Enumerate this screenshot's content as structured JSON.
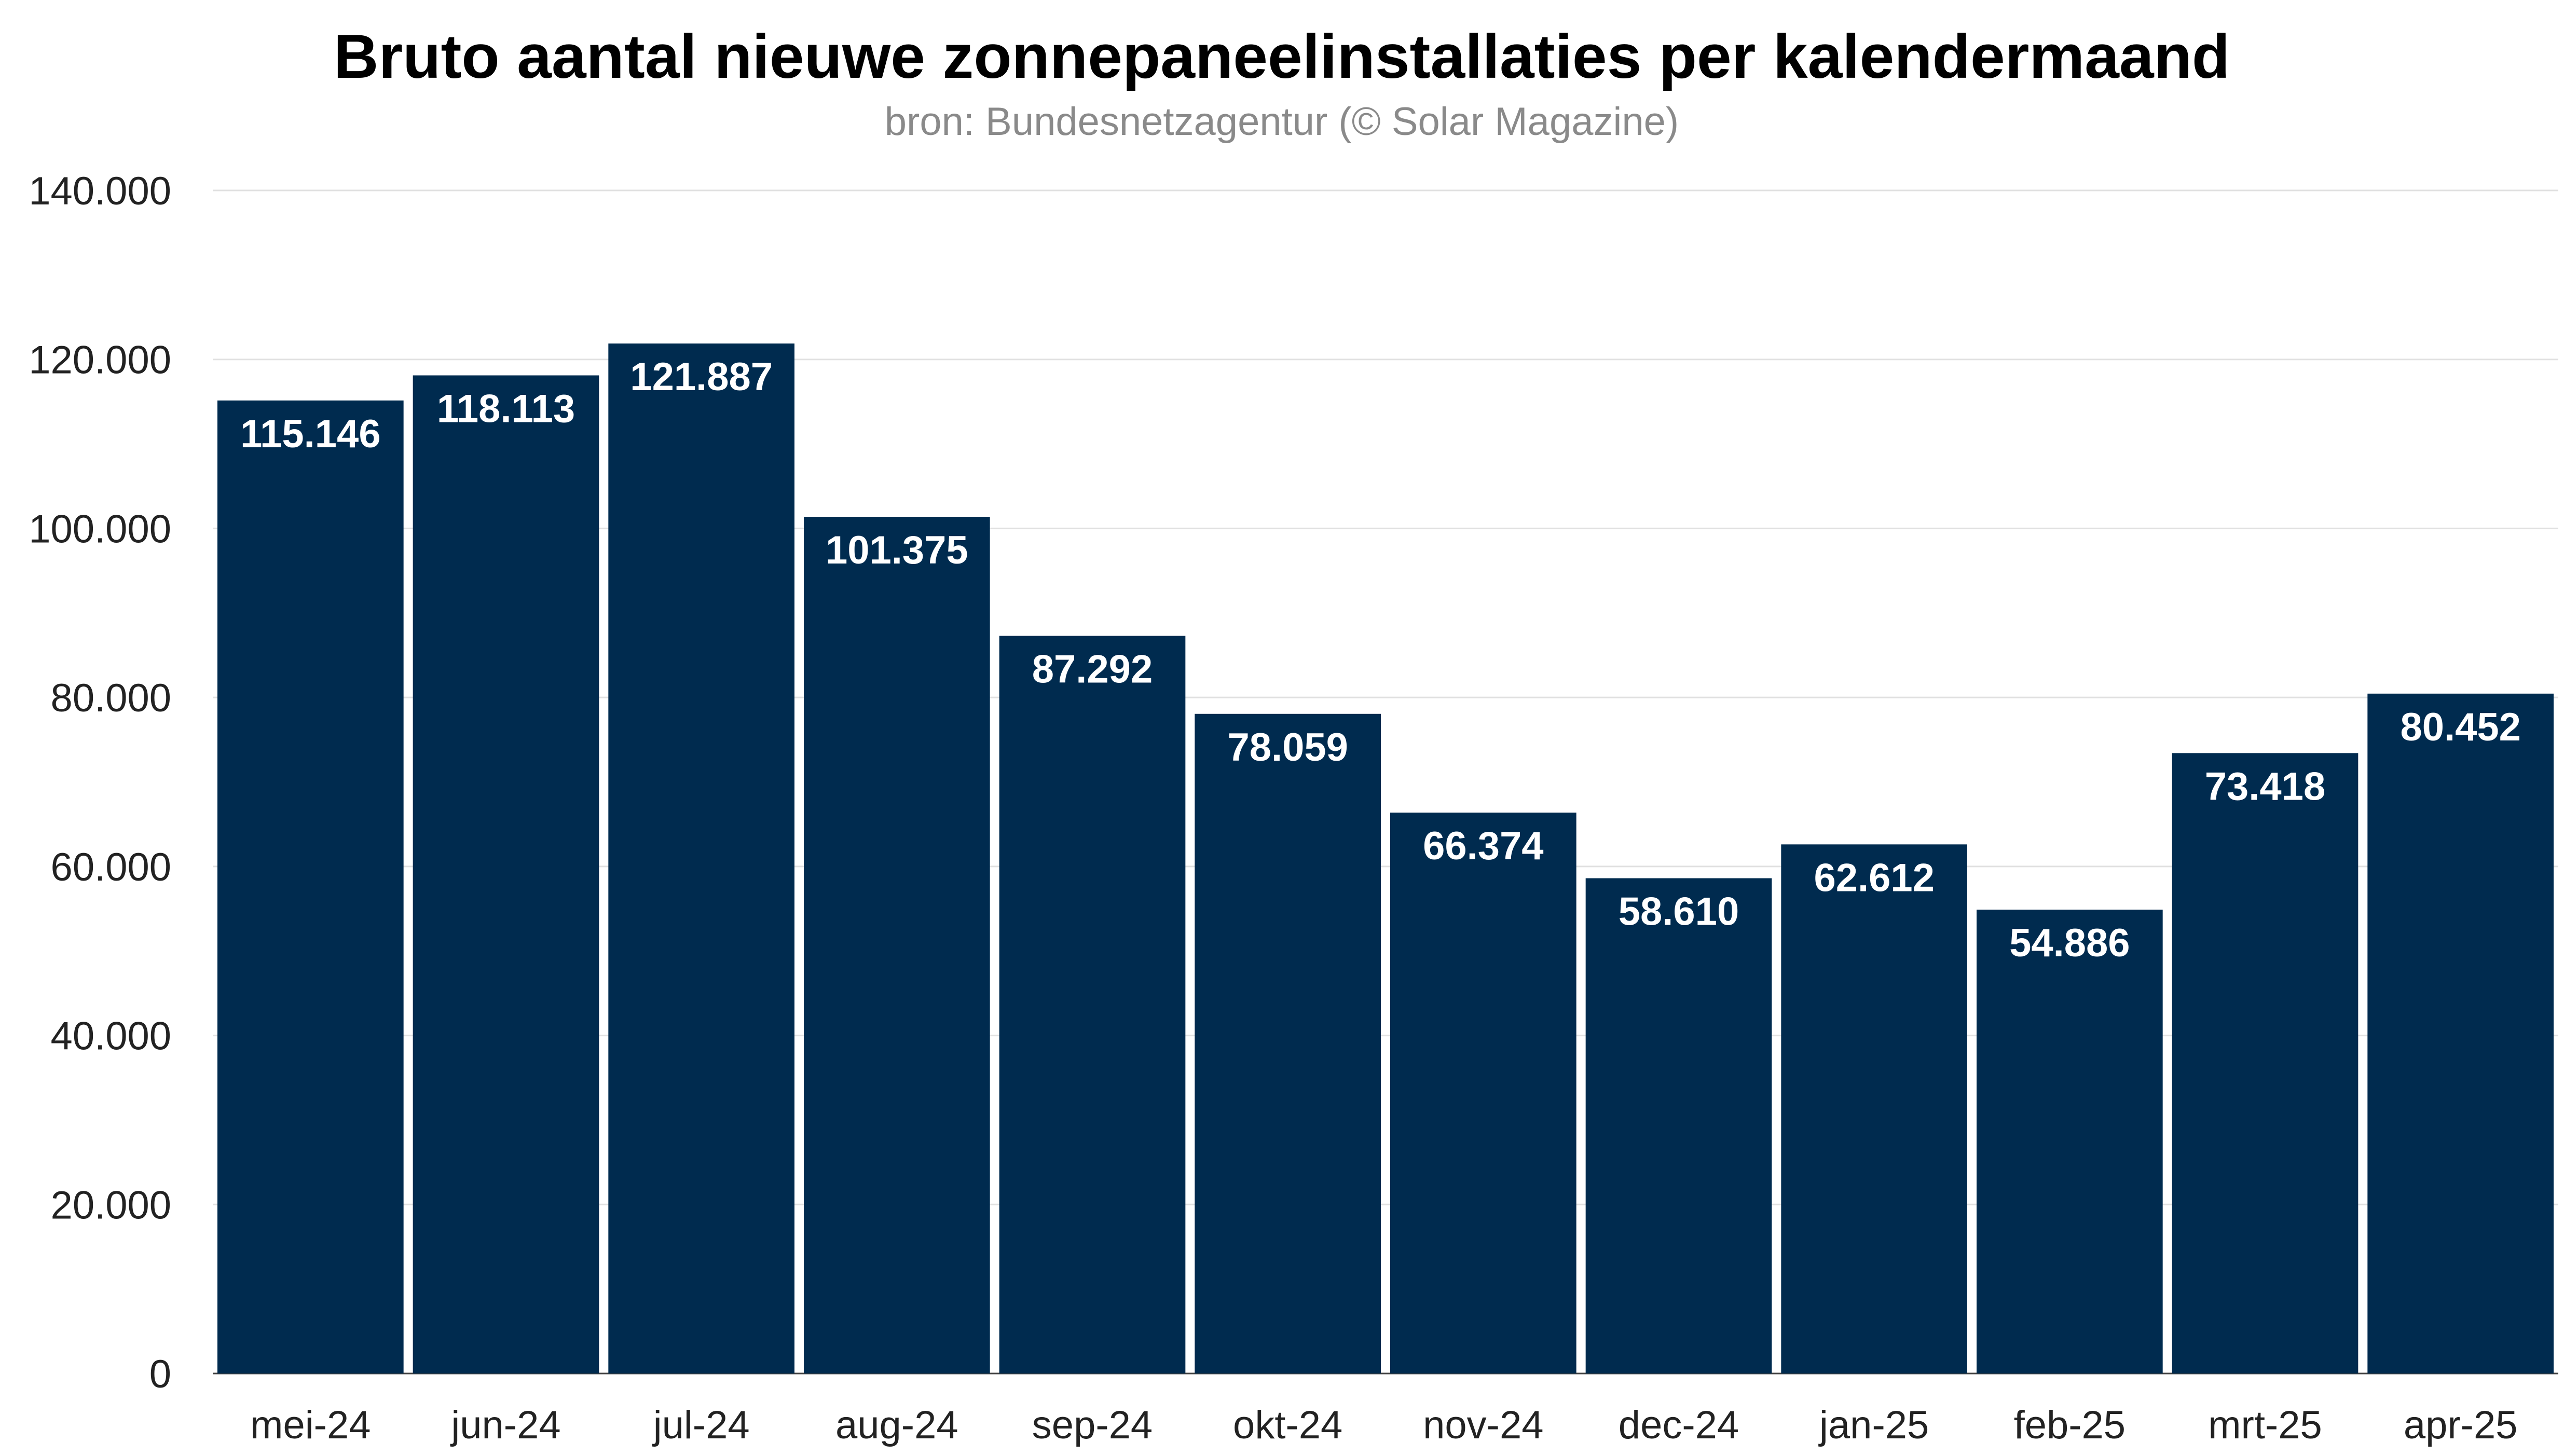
{
  "chart_data": {
    "type": "bar",
    "title": "Bruto aantal nieuwe zonnepaneelinstallaties per kalendermaand",
    "subtitle": "bron: Bundesnetzagentur (© Solar Magazine)",
    "xlabel": "",
    "ylabel": "",
    "ylim": [
      0,
      140000
    ],
    "yticks": [
      0,
      20000,
      40000,
      60000,
      80000,
      100000,
      120000,
      140000
    ],
    "ytick_labels": [
      "0",
      "20.000",
      "40.000",
      "60.000",
      "80.000",
      "100.000",
      "120.000",
      "140.000"
    ],
    "grid": true,
    "legend": "none",
    "categories": [
      "mei-24",
      "jun-24",
      "jul-24",
      "aug-24",
      "sep-24",
      "okt-24",
      "nov-24",
      "dec-24",
      "jan-25",
      "feb-25",
      "mrt-25",
      "apr-25"
    ],
    "values": [
      115146,
      118113,
      121887,
      101375,
      87292,
      78059,
      66374,
      58610,
      62612,
      54886,
      73418,
      80452
    ],
    "value_labels": [
      "115.146",
      "118.113",
      "121.887",
      "101.375",
      "87.292",
      "78.059",
      "66.374",
      "58.610",
      "62.612",
      "54.886",
      "73.418",
      "80.452"
    ],
    "colors": {
      "bar": "#002b4f",
      "grid": "#e0e0e0",
      "label": "#ffffff"
    }
  }
}
